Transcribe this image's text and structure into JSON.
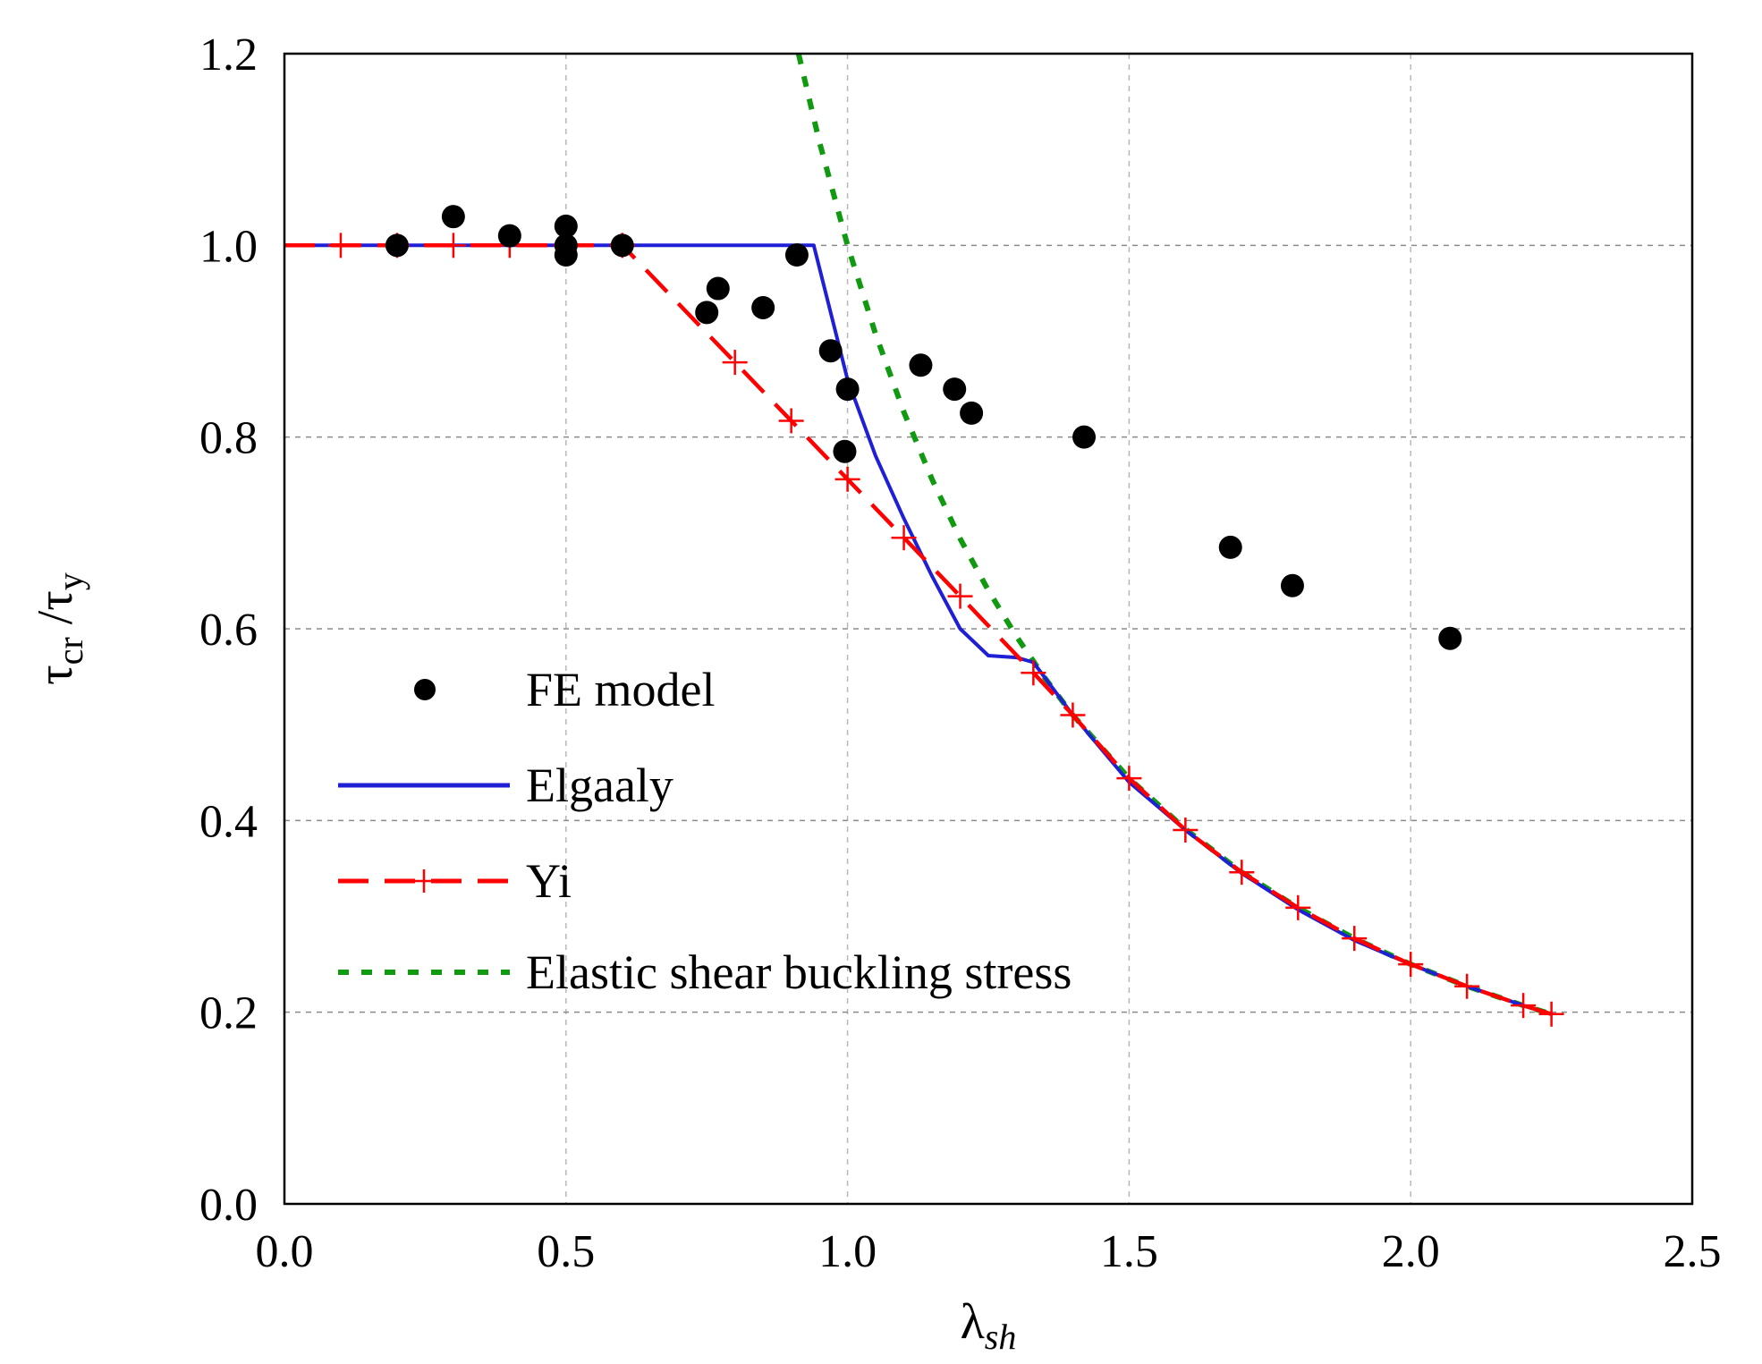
{
  "chart_data": {
    "type": "line",
    "title": "",
    "xlabel": "λ",
    "xlabel_sub": "sh",
    "ylabel": {
      "num": "τ",
      "num_sub": "cr",
      "sep": " /",
      "den": "τ",
      "den_sub": "y"
    },
    "xlim": [
      0.0,
      2.5
    ],
    "ylim": [
      0.0,
      1.2
    ],
    "xticks": [
      0.0,
      0.5,
      1.0,
      1.5,
      2.0,
      2.5
    ],
    "yticks": [
      0.0,
      0.2,
      0.4,
      0.6,
      0.8,
      1.0,
      1.2
    ],
    "xtick_labels": [
      "0.0",
      "0.5",
      "1.0",
      "1.5",
      "2.0",
      "2.5"
    ],
    "ytick_labels": [
      "0.0",
      "0.2",
      "0.4",
      "0.6",
      "0.8",
      "1.0",
      "1.2"
    ],
    "grid": true,
    "legend_position": "left-middle",
    "series": [
      {
        "name": "FE model",
        "style": "markers",
        "marker": "filled-circle",
        "color": "#000000",
        "points": [
          [
            0.2,
            1.0
          ],
          [
            0.3,
            1.03
          ],
          [
            0.4,
            1.01
          ],
          [
            0.5,
            1.02
          ],
          [
            0.5,
            1.0
          ],
          [
            0.5,
            0.99
          ],
          [
            0.6,
            1.0
          ],
          [
            0.75,
            0.93
          ],
          [
            0.77,
            0.955
          ],
          [
            0.85,
            0.935
          ],
          [
            0.91,
            0.99
          ],
          [
            0.97,
            0.89
          ],
          [
            1.0,
            0.85
          ],
          [
            0.995,
            0.785
          ],
          [
            1.13,
            0.875
          ],
          [
            1.19,
            0.85
          ],
          [
            1.22,
            0.825
          ],
          [
            1.42,
            0.8
          ],
          [
            1.68,
            0.685
          ],
          [
            1.79,
            0.645
          ],
          [
            2.07,
            0.59
          ]
        ]
      },
      {
        "name": "Elgaaly",
        "style": "solid",
        "color": "#1f1fd6",
        "points": [
          [
            0.0,
            1.0
          ],
          [
            0.94,
            1.0
          ],
          [
            0.97,
            0.93
          ],
          [
            1.0,
            0.86
          ],
          [
            1.05,
            0.78
          ],
          [
            1.1,
            0.715
          ],
          [
            1.15,
            0.655
          ],
          [
            1.2,
            0.6
          ],
          [
            1.25,
            0.572
          ],
          [
            1.3,
            0.57
          ],
          [
            1.33,
            0.565
          ],
          [
            1.4,
            0.51
          ],
          [
            1.5,
            0.44
          ],
          [
            1.6,
            0.39
          ],
          [
            1.7,
            0.345
          ],
          [
            1.8,
            0.307
          ],
          [
            1.9,
            0.275
          ],
          [
            2.0,
            0.25
          ],
          [
            2.1,
            0.227
          ],
          [
            2.2,
            0.207
          ],
          [
            2.25,
            0.198
          ]
        ]
      },
      {
        "name": "Yi",
        "style": "dashed-plus",
        "color": "#ff0000",
        "points": [
          [
            0.0,
            1.0
          ],
          [
            0.1,
            1.0
          ],
          [
            0.2,
            1.0
          ],
          [
            0.3,
            1.0
          ],
          [
            0.4,
            1.0
          ],
          [
            0.5,
            1.0
          ],
          [
            0.6,
            1.0
          ],
          [
            0.8,
            0.878
          ],
          [
            0.9,
            0.817
          ],
          [
            1.0,
            0.756
          ],
          [
            1.1,
            0.695
          ],
          [
            1.2,
            0.634
          ],
          [
            1.33,
            0.554
          ],
          [
            1.4,
            0.51
          ],
          [
            1.5,
            0.444
          ],
          [
            1.6,
            0.39
          ],
          [
            1.7,
            0.346
          ],
          [
            1.8,
            0.309
          ],
          [
            1.9,
            0.277
          ],
          [
            2.0,
            0.25
          ],
          [
            2.1,
            0.227
          ],
          [
            2.2,
            0.207
          ],
          [
            2.25,
            0.198
          ]
        ],
        "marker_points": [
          [
            0.1,
            1.0
          ],
          [
            0.2,
            1.0
          ],
          [
            0.3,
            1.0
          ],
          [
            0.4,
            1.0
          ],
          [
            0.5,
            1.0
          ],
          [
            0.6,
            1.0
          ],
          [
            0.8,
            0.878
          ],
          [
            0.9,
            0.817
          ],
          [
            1.0,
            0.756
          ],
          [
            1.1,
            0.695
          ],
          [
            1.2,
            0.634
          ],
          [
            1.33,
            0.554
          ],
          [
            1.4,
            0.51
          ],
          [
            1.5,
            0.444
          ],
          [
            1.6,
            0.39
          ],
          [
            1.7,
            0.346
          ],
          [
            1.8,
            0.309
          ],
          [
            1.9,
            0.277
          ],
          [
            2.0,
            0.25
          ],
          [
            2.1,
            0.227
          ],
          [
            2.2,
            0.207
          ],
          [
            2.25,
            0.198
          ]
        ]
      },
      {
        "name": "Elastic shear buckling stress",
        "style": "dotted",
        "color": "#119911",
        "points": [
          [
            0.913,
            1.2
          ],
          [
            0.95,
            1.108
          ],
          [
            1.0,
            1.0
          ],
          [
            1.05,
            0.907
          ],
          [
            1.1,
            0.826
          ],
          [
            1.15,
            0.756
          ],
          [
            1.2,
            0.694
          ],
          [
            1.25,
            0.64
          ],
          [
            1.3,
            0.592
          ],
          [
            1.35,
            0.549
          ],
          [
            1.4,
            0.51
          ],
          [
            1.5,
            0.444
          ],
          [
            1.6,
            0.391
          ],
          [
            1.7,
            0.346
          ],
          [
            1.8,
            0.309
          ],
          [
            1.9,
            0.277
          ],
          [
            2.0,
            0.25
          ],
          [
            2.1,
            0.227
          ],
          [
            2.2,
            0.207
          ],
          [
            2.25,
            0.198
          ]
        ]
      }
    ]
  }
}
